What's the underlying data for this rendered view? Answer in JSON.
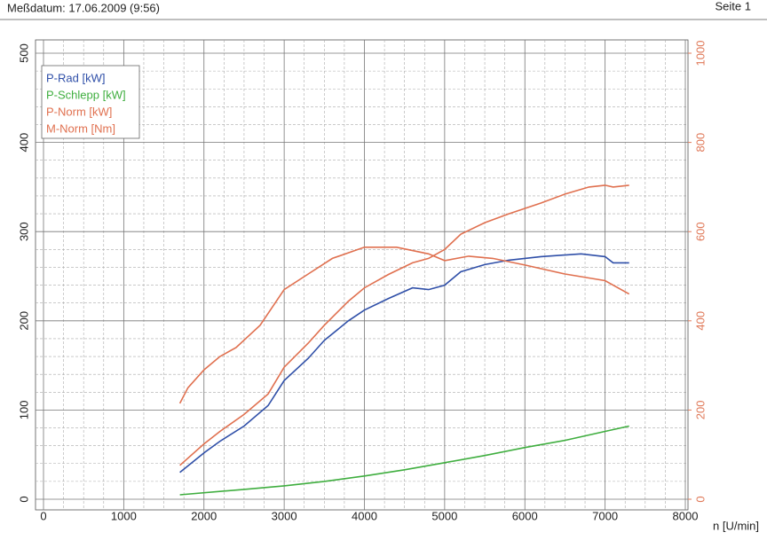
{
  "header": {
    "left": "Meßdatum: 17.06.2009 (9:56)",
    "right": "Seite 1"
  },
  "chart_data": {
    "type": "line",
    "x_label": "n [U/min]",
    "xlim": [
      0,
      8000
    ],
    "xticks": [
      0,
      1000,
      2000,
      3000,
      4000,
      5000,
      6000,
      7000,
      8000
    ],
    "ylim": [
      0,
      500
    ],
    "yticks": [
      0,
      100,
      200,
      300,
      400,
      500
    ],
    "y2lim": [
      0,
      1000
    ],
    "y2ticks": [
      0,
      200,
      400,
      600,
      800,
      1000
    ],
    "y2_color": "#e07a5a",
    "grid": true,
    "minor_grid": true,
    "legend": "upper left",
    "series": [
      {
        "name": "P-Rad [kW]",
        "color": "#2f4fa8",
        "x": [
          1700,
          2000,
          2200,
          2500,
          2800,
          3000,
          3300,
          3500,
          3800,
          4000,
          4300,
          4600,
          4800,
          5000,
          5200,
          5500,
          5800,
          6200,
          6700,
          7000,
          7100,
          7300
        ],
        "values": [
          30,
          52,
          65,
          82,
          105,
          133,
          158,
          178,
          200,
          212,
          225,
          237,
          235,
          240,
          255,
          263,
          268,
          272,
          275,
          272,
          265,
          265
        ]
      },
      {
        "name": "P-Schlepp [kW]",
        "color": "#3fae3f",
        "x": [
          1700,
          2500,
          3000,
          3500,
          4000,
          4500,
          5000,
          5500,
          6000,
          6500,
          7000,
          7300
        ],
        "values": [
          5,
          11,
          15,
          20,
          26,
          33,
          41,
          49,
          58,
          66,
          76,
          82
        ]
      },
      {
        "name": "P-Norm [kW]",
        "color": "#e0704f",
        "x": [
          1700,
          2000,
          2200,
          2500,
          2800,
          3000,
          3300,
          3500,
          3800,
          4000,
          4300,
          4600,
          4800,
          5000,
          5200,
          5500,
          5800,
          6200,
          6500,
          6800,
          7000,
          7100,
          7300
        ],
        "values": [
          38,
          62,
          76,
          95,
          118,
          148,
          175,
          195,
          222,
          237,
          252,
          265,
          270,
          280,
          297,
          310,
          320,
          332,
          342,
          350,
          352,
          350,
          352
        ]
      },
      {
        "name": "M-Norm [Nm]",
        "color": "#e0704f",
        "axis": "y2",
        "x": [
          1700,
          1800,
          2000,
          2200,
          2400,
          2700,
          3000,
          3300,
          3600,
          4000,
          4400,
          4800,
          5000,
          5300,
          5600,
          6000,
          6500,
          7000,
          7300
        ],
        "values": [
          215,
          250,
          290,
          320,
          340,
          390,
          470,
          505,
          540,
          565,
          565,
          550,
          535,
          545,
          540,
          525,
          505,
          490,
          460
        ]
      }
    ]
  }
}
